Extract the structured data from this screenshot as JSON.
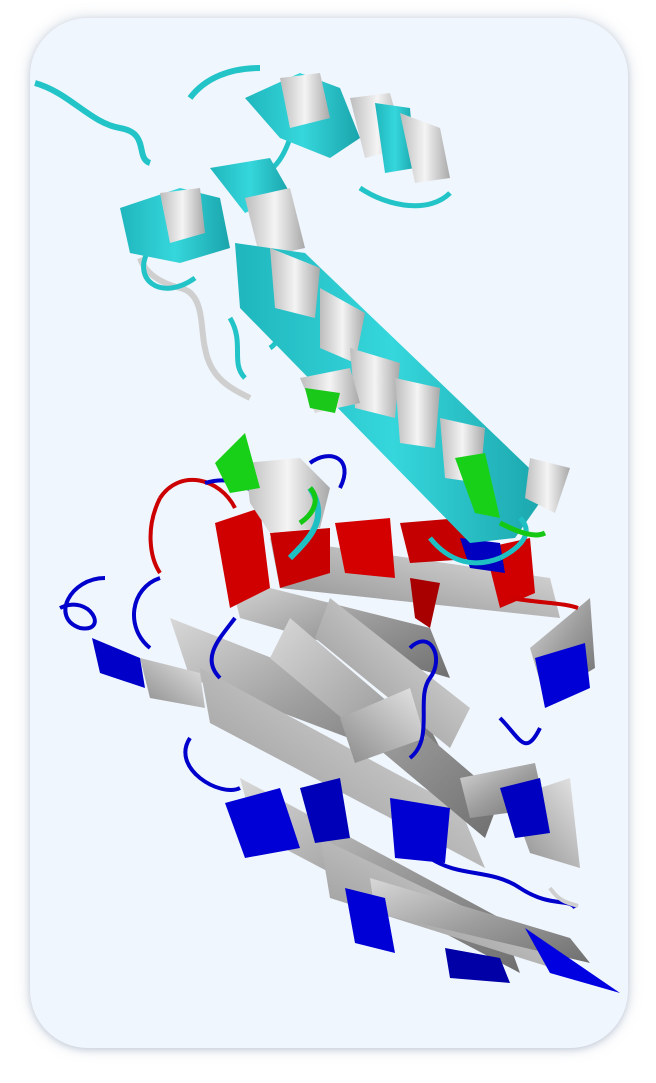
{
  "image": {
    "subject": "protein-ribbon-structure",
    "colors": {
      "background": "#f0f6fd",
      "helix": "#22c8cc",
      "helix_light": "#e2e2e2",
      "sheet": "#9a9a9a",
      "sheet_light": "#cfcfcf",
      "strand_red": "#d20000",
      "strand_blue": "#0000d4",
      "turn_green": "#1ed21e",
      "coil_white": "#d6d6d6"
    }
  }
}
